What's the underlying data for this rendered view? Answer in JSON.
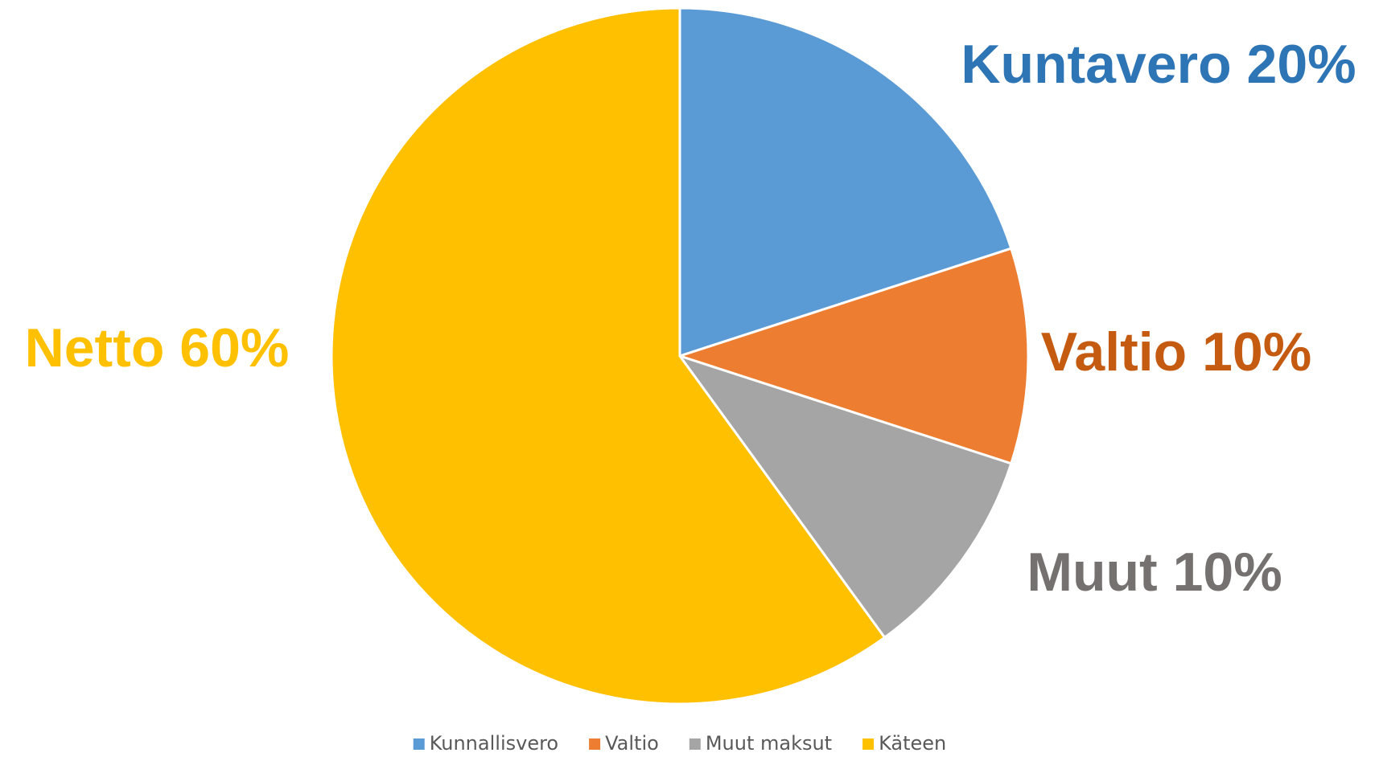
{
  "chart_data": {
    "type": "pie",
    "categories": [
      "Kunnallisvero",
      "Valtio",
      "Muut maksut",
      "Käteen"
    ],
    "values": [
      20,
      10,
      10,
      60
    ],
    "value_labels": [
      "Kuntavero 20%",
      "Valtio 10%",
      "Muut 10%",
      "Netto 60%"
    ],
    "colors": [
      "#5b9bd5",
      "#ed7d31",
      "#a5a5a5",
      "#ffc000"
    ],
    "label_colors": [
      "#2e75b6",
      "#c55a11",
      "#767171",
      "#ffc000"
    ],
    "legend": "bottom"
  }
}
